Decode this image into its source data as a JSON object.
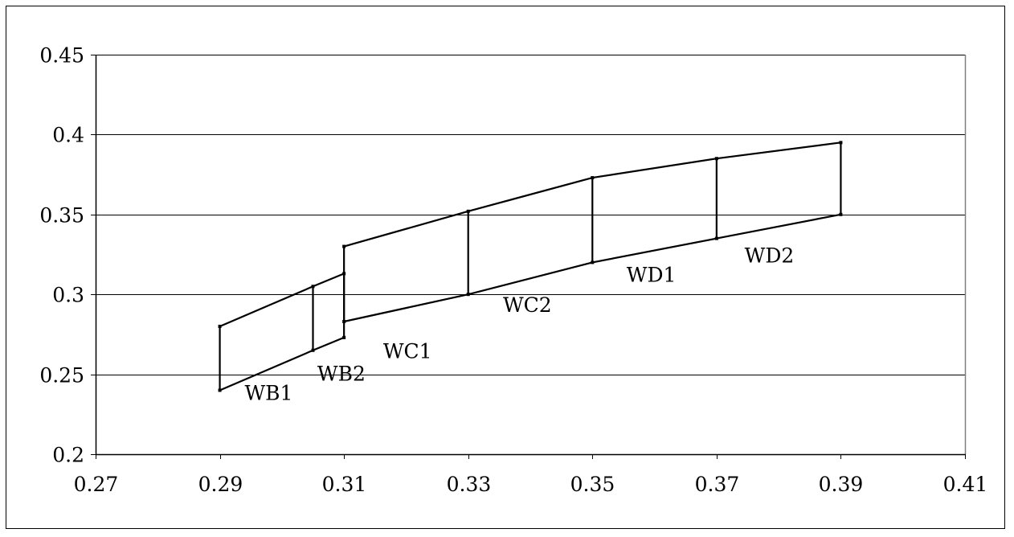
{
  "chart_data": {
    "type": "line",
    "title": "",
    "xlabel": "",
    "ylabel": "",
    "xlim": [
      0.27,
      0.41
    ],
    "ylim": [
      0.2,
      0.45
    ],
    "x_ticks": [
      "0.27",
      "0.29",
      "0.31",
      "0.33",
      "0.35",
      "0.37",
      "0.39",
      "0.41"
    ],
    "y_ticks": [
      "0.2",
      "0.25",
      "0.3",
      "0.35",
      "0.4",
      "0.45"
    ],
    "x_tick_values": [
      0.27,
      0.29,
      0.31,
      0.33,
      0.35,
      0.37,
      0.39,
      0.41
    ],
    "y_tick_values": [
      0.2,
      0.25,
      0.3,
      0.35,
      0.4,
      0.45
    ],
    "grid": {
      "horizontal": true,
      "vertical": false
    },
    "legend": "none",
    "series": [
      {
        "x": [
          0.29,
          0.305,
          0.31
        ],
        "y": [
          0.28,
          0.305,
          0.313
        ]
      },
      {
        "x": [
          0.29,
          0.305,
          0.31
        ],
        "y": [
          0.24,
          0.265,
          0.273
        ]
      },
      {
        "x": [
          0.31,
          0.33,
          0.35,
          0.37,
          0.39
        ],
        "y": [
          0.33,
          0.352,
          0.373,
          0.385,
          0.395
        ]
      },
      {
        "x": [
          0.31,
          0.33,
          0.35,
          0.37,
          0.39
        ],
        "y": [
          0.283,
          0.3,
          0.32,
          0.335,
          0.35
        ]
      }
    ],
    "verticals": [
      {
        "x": 0.29,
        "y": [
          0.24,
          0.28
        ]
      },
      {
        "x": 0.305,
        "y": [
          0.265,
          0.305
        ]
      },
      {
        "x": 0.31,
        "y": [
          0.273,
          0.313
        ]
      },
      {
        "x": 0.31,
        "y": [
          0.283,
          0.33
        ]
      },
      {
        "x": 0.33,
        "y": [
          0.3,
          0.352
        ]
      },
      {
        "x": 0.35,
        "y": [
          0.32,
          0.373
        ]
      },
      {
        "x": 0.37,
        "y": [
          0.335,
          0.385
        ]
      },
      {
        "x": 0.39,
        "y": [
          0.35,
          0.395
        ]
      }
    ],
    "annotations": [
      {
        "text": "WB1",
        "x": 0.294,
        "y": 0.234
      },
      {
        "text": "WB2",
        "x": 0.3057,
        "y": 0.246
      },
      {
        "text": "WC1",
        "x": 0.3163,
        "y": 0.26
      },
      {
        "text": "WC2",
        "x": 0.3356,
        "y": 0.289
      },
      {
        "text": "WD1",
        "x": 0.3555,
        "y": 0.308
      },
      {
        "text": "WD2",
        "x": 0.3745,
        "y": 0.32
      }
    ],
    "colors": {
      "line": "#000000",
      "grid": "#000000",
      "axis": "#808080"
    }
  }
}
